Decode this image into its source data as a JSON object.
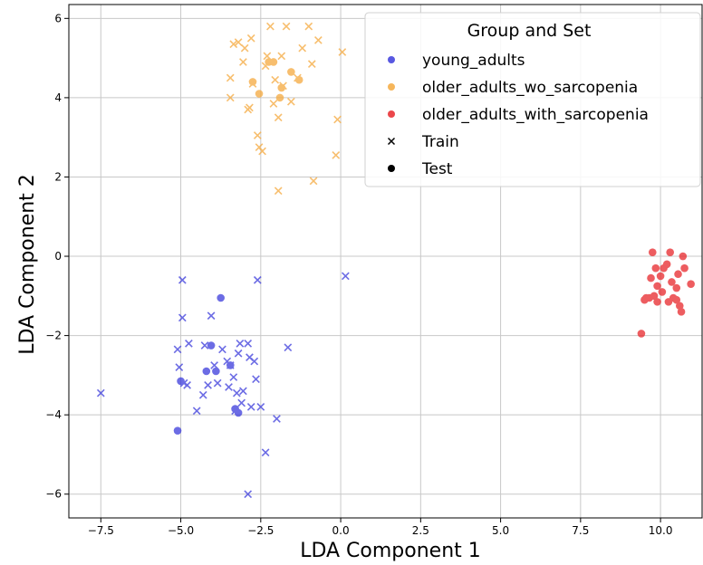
{
  "chart_data": {
    "type": "scatter",
    "title": "",
    "xlabel": "LDA Component 1",
    "ylabel": "LDA Component 2",
    "xlim": [
      -8.5,
      11.3
    ],
    "ylim": [
      -6.6,
      6.35
    ],
    "xticks": [
      -7.5,
      -5.0,
      -2.5,
      0.0,
      2.5,
      5.0,
      7.5,
      10.0
    ],
    "xtick_labels": [
      "−7.5",
      "−5.0",
      "−2.5",
      "0.0",
      "2.5",
      "5.0",
      "7.5",
      "10.0"
    ],
    "yticks": [
      -6,
      -4,
      -2,
      0,
      2,
      4,
      6
    ],
    "ytick_labels": [
      "−6",
      "−4",
      "−2",
      "0",
      "2",
      "4",
      "6"
    ],
    "grid": true,
    "legend": {
      "title": "Group and Set",
      "placement": "top-right",
      "entries": [
        {
          "label": "young_adults",
          "marker": "dot",
          "color": "#3b3bdc"
        },
        {
          "label": "older_adults_wo_sarcopenia",
          "marker": "dot",
          "color": "#f5a93e"
        },
        {
          "label": "older_adults_with_sarcopenia",
          "marker": "dot",
          "color": "#e8272b"
        },
        {
          "label": "Train",
          "marker": "x",
          "color": "#000000"
        },
        {
          "label": "Test",
          "marker": "dot",
          "color": "#000000"
        }
      ]
    },
    "series": [
      {
        "name": "young_adults",
        "color": "#3b3bdc",
        "train": [
          [
            -7.5,
            -3.45
          ],
          [
            -5.1,
            -2.35
          ],
          [
            -5.05,
            -2.8
          ],
          [
            -4.95,
            -0.6
          ],
          [
            -4.95,
            -1.55
          ],
          [
            -4.9,
            -3.2
          ],
          [
            -4.8,
            -3.25
          ],
          [
            -4.75,
            -2.2
          ],
          [
            -4.5,
            -3.9
          ],
          [
            -4.3,
            -3.5
          ],
          [
            -4.25,
            -2.25
          ],
          [
            -4.15,
            -3.25
          ],
          [
            -4.05,
            -1.5
          ],
          [
            -3.95,
            -2.75
          ],
          [
            -3.85,
            -3.2
          ],
          [
            -3.7,
            -2.35
          ],
          [
            -3.55,
            -2.65
          ],
          [
            -3.5,
            -3.3
          ],
          [
            -3.45,
            -2.75
          ],
          [
            -3.35,
            -3.05
          ],
          [
            -3.3,
            -3.9
          ],
          [
            -3.25,
            -3.45
          ],
          [
            -3.2,
            -2.45
          ],
          [
            -3.15,
            -2.2
          ],
          [
            -3.1,
            -3.7
          ],
          [
            -3.05,
            -3.4
          ],
          [
            -2.9,
            -2.2
          ],
          [
            -2.85,
            -2.55
          ],
          [
            -2.8,
            -3.8
          ],
          [
            -2.7,
            -2.65
          ],
          [
            -2.65,
            -3.1
          ],
          [
            -2.6,
            -0.6
          ],
          [
            -2.5,
            -3.8
          ],
          [
            -2.35,
            -4.95
          ],
          [
            -2.0,
            -4.1
          ],
          [
            -1.65,
            -2.3
          ],
          [
            0.15,
            -0.5
          ],
          [
            -2.9,
            -6.0
          ]
        ],
        "test": [
          [
            -5.1,
            -4.4
          ],
          [
            -5.0,
            -3.15
          ],
          [
            -4.2,
            -2.9
          ],
          [
            -4.05,
            -2.25
          ],
          [
            -3.9,
            -2.9
          ],
          [
            -3.75,
            -1.05
          ],
          [
            -3.45,
            -2.75
          ],
          [
            -3.3,
            -3.85
          ],
          [
            -3.2,
            -3.95
          ]
        ]
      },
      {
        "name": "older_adults_wo_sarcopenia",
        "color": "#f5a93e",
        "train": [
          [
            -3.45,
            4.0
          ],
          [
            -3.45,
            4.5
          ],
          [
            -3.35,
            5.35
          ],
          [
            -3.2,
            5.4
          ],
          [
            -3.05,
            4.9
          ],
          [
            -3.0,
            5.25
          ],
          [
            -2.9,
            3.7
          ],
          [
            -2.85,
            3.75
          ],
          [
            -2.8,
            5.5
          ],
          [
            -2.75,
            4.35
          ],
          [
            -2.6,
            3.05
          ],
          [
            -2.55,
            2.75
          ],
          [
            -2.45,
            2.65
          ],
          [
            -2.35,
            4.8
          ],
          [
            -2.3,
            5.05
          ],
          [
            -2.2,
            5.8
          ],
          [
            -2.1,
            3.85
          ],
          [
            -2.05,
            4.45
          ],
          [
            -1.95,
            1.65
          ],
          [
            -1.95,
            3.5
          ],
          [
            -1.85,
            5.05
          ],
          [
            -1.8,
            4.3
          ],
          [
            -1.7,
            5.8
          ],
          [
            -1.55,
            3.9
          ],
          [
            -1.35,
            4.5
          ],
          [
            -1.2,
            5.25
          ],
          [
            -1.0,
            5.8
          ],
          [
            -0.9,
            4.85
          ],
          [
            -0.85,
            1.9
          ],
          [
            -0.7,
            5.45
          ],
          [
            -0.15,
            2.55
          ],
          [
            -0.1,
            3.45
          ],
          [
            0.05,
            5.15
          ]
        ],
        "test": [
          [
            -2.75,
            4.4
          ],
          [
            -2.55,
            4.1
          ],
          [
            -2.25,
            4.9
          ],
          [
            -2.1,
            4.9
          ],
          [
            -1.9,
            4.0
          ],
          [
            -1.85,
            4.25
          ],
          [
            -1.55,
            4.65
          ],
          [
            -1.3,
            4.45
          ]
        ]
      },
      {
        "name": "older_adults_with_sarcopenia",
        "color": "#e8272b",
        "train": [],
        "test": [
          [
            9.4,
            -1.95
          ],
          [
            9.5,
            -1.1
          ],
          [
            9.55,
            -1.05
          ],
          [
            9.65,
            -1.05
          ],
          [
            9.7,
            -0.55
          ],
          [
            9.75,
            0.1
          ],
          [
            9.8,
            -1.0
          ],
          [
            9.85,
            -0.3
          ],
          [
            9.9,
            -0.75
          ],
          [
            9.9,
            -1.15
          ],
          [
            10.0,
            -0.5
          ],
          [
            10.05,
            -0.9
          ],
          [
            10.1,
            -0.3
          ],
          [
            10.2,
            -0.2
          ],
          [
            10.25,
            -1.15
          ],
          [
            10.3,
            0.1
          ],
          [
            10.35,
            -0.65
          ],
          [
            10.4,
            -1.05
          ],
          [
            10.5,
            -0.8
          ],
          [
            10.55,
            -0.45
          ],
          [
            10.6,
            -1.25
          ],
          [
            10.65,
            -1.4
          ],
          [
            10.7,
            0.0
          ],
          [
            10.75,
            -0.3
          ],
          [
            10.95,
            -0.7
          ],
          [
            10.5,
            -1.1
          ]
        ]
      }
    ]
  }
}
